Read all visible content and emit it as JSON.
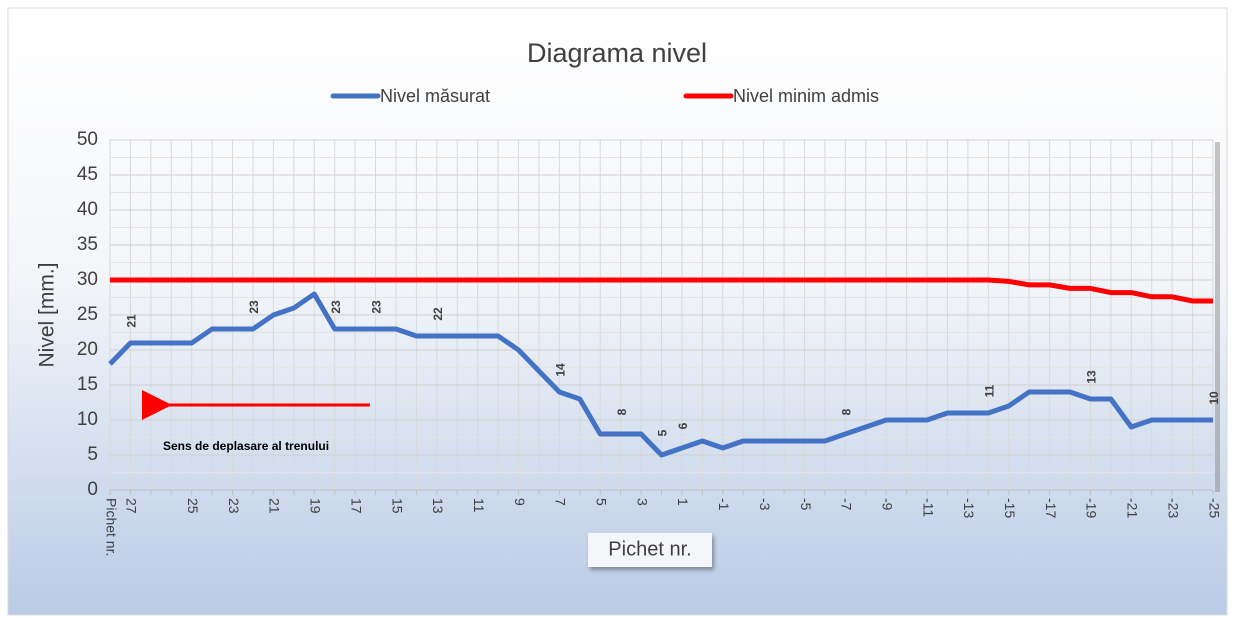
{
  "chart_data": {
    "type": "line",
    "title": "Diagrama nivel",
    "x_label": "Pichet nr.",
    "y_label": "Nivel [mm.]",
    "annotation": "Sens de deplasare al trenului",
    "categories": [
      "Pichet nr.",
      "27",
      null,
      null,
      "25",
      null,
      "23",
      null,
      "21",
      null,
      "19",
      null,
      "17",
      null,
      "15",
      null,
      "13",
      null,
      "11",
      null,
      "9",
      null,
      "7",
      null,
      "5",
      null,
      "3",
      null,
      "1",
      null,
      "-1",
      null,
      "-3",
      null,
      "-5",
      null,
      "-7",
      null,
      "-9",
      null,
      "-11",
      null,
      "-13",
      null,
      "-15",
      null,
      "-17",
      null,
      "-19",
      null,
      "-21",
      null,
      "-23",
      null,
      "-25"
    ],
    "series": [
      {
        "name": "Nivel măsurat",
        "color": "#4472c4",
        "values": [
          18,
          21,
          21,
          21,
          21,
          23,
          23,
          23,
          25,
          26,
          28,
          23,
          23,
          23,
          23,
          22,
          22,
          22,
          22,
          22,
          20,
          17,
          14,
          13,
          8,
          8,
          8,
          5,
          6,
          7,
          6,
          7,
          7,
          7,
          7,
          7,
          8,
          9,
          10,
          10,
          10,
          11,
          11,
          11,
          12,
          14,
          14,
          14,
          13,
          13,
          9,
          10,
          10,
          10,
          10
        ],
        "value_labels": [
          null,
          "21",
          null,
          null,
          null,
          null,
          null,
          "23",
          null,
          null,
          null,
          "23",
          null,
          "23",
          null,
          null,
          "22",
          null,
          null,
          null,
          null,
          null,
          "14",
          null,
          null,
          "8",
          null,
          "5",
          "6",
          null,
          null,
          null,
          null,
          null,
          null,
          null,
          "8",
          null,
          null,
          null,
          null,
          null,
          null,
          "11",
          null,
          null,
          null,
          null,
          "13",
          null,
          null,
          null,
          null,
          null,
          "10"
        ]
      },
      {
        "name": "Nivel minim admis",
        "color": "#ff0000",
        "values": [
          30,
          30,
          30,
          30,
          30,
          30,
          30,
          30,
          30,
          30,
          30,
          30,
          30,
          30,
          30,
          30,
          30,
          30,
          30,
          30,
          30,
          30,
          30,
          30,
          30,
          30,
          30,
          30,
          30,
          30,
          30,
          30,
          30,
          30,
          30,
          30,
          30,
          30,
          30,
          30,
          30,
          30,
          30,
          30,
          29.8,
          29.3,
          29.3,
          28.8,
          28.8,
          28.2,
          28.2,
          27.6,
          27.6,
          27,
          27
        ]
      }
    ],
    "ylim": [
      0,
      50
    ],
    "yticks": [
      0,
      5,
      10,
      15,
      20,
      25,
      30,
      35,
      40,
      45,
      50
    ],
    "grid": true
  }
}
